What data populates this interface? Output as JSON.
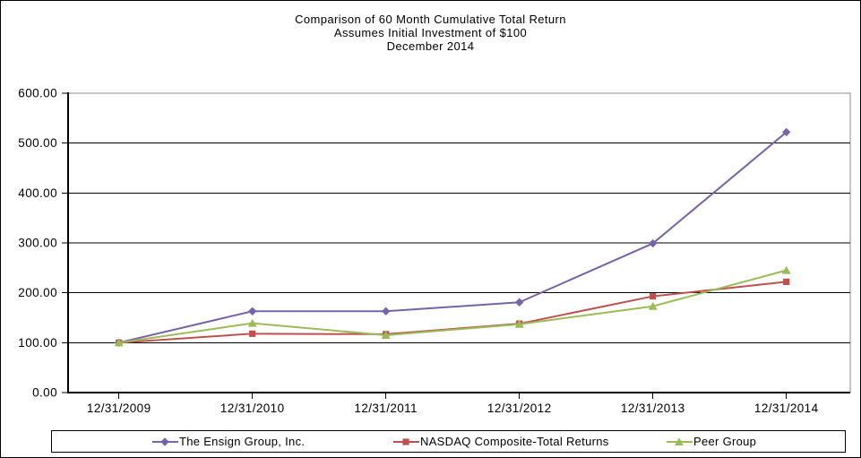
{
  "chart_data": {
    "type": "line",
    "title_lines": [
      "Comparison of 60 Month Cumulative Total Return",
      "Assumes Initial Investment of $100",
      "December 2014"
    ],
    "categories": [
      "12/31/2009",
      "12/31/2010",
      "12/31/2011",
      "12/31/2012",
      "12/31/2013",
      "12/31/2014"
    ],
    "series": [
      {
        "name": "The Ensign Group, Inc.",
        "values": [
          100,
          163,
          163,
          181,
          299,
          522
        ],
        "color": "#7863A8",
        "marker": "diamond"
      },
      {
        "name": "NASDAQ Composite-Total Returns",
        "values": [
          100,
          118,
          117,
          138,
          193,
          222
        ],
        "color": "#C0504D",
        "marker": "square"
      },
      {
        "name": "Peer Group",
        "values": [
          100,
          139,
          115,
          137,
          173,
          245
        ],
        "color": "#9BBB59",
        "marker": "triangle"
      }
    ],
    "ylim": [
      0,
      600
    ],
    "ytick_step": 100,
    "ytick_labels": [
      "0.00",
      "100.00",
      "200.00",
      "300.00",
      "400.00",
      "500.00",
      "600.00"
    ],
    "grid": true,
    "legend_position": "bottom"
  },
  "colors": {
    "background": "#FFFFFF",
    "text": "#000000",
    "gridline": "#000000",
    "axis": "#000000",
    "plot_border": "#8C8C8C"
  }
}
